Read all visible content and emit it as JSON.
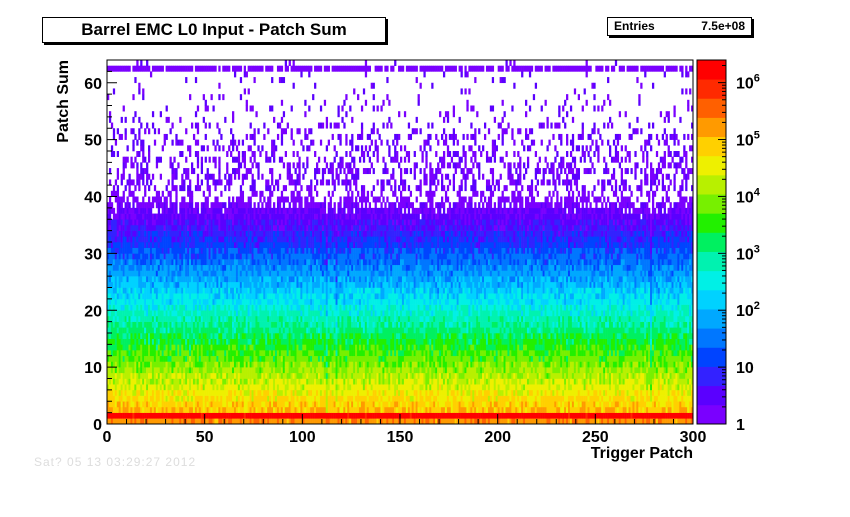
{
  "chart_data": {
    "type": "heatmap",
    "title": "Barrel EMC L0 Input - Patch Sum",
    "xlabel": "Trigger Patch",
    "ylabel": "Patch Sum",
    "xlim": [
      0,
      300
    ],
    "ylim": [
      0,
      64
    ],
    "x_ticks": [
      0,
      50,
      100,
      150,
      200,
      250,
      300
    ],
    "y_ticks": [
      0,
      10,
      20,
      30,
      40,
      50,
      60
    ],
    "z_scale": "log",
    "zlim": [
      1,
      2500000
    ],
    "z_tick_labels": [
      {
        "value": 1,
        "label": "1"
      },
      {
        "value": 10,
        "label": "10"
      },
      {
        "value": 100,
        "label": "10",
        "exponent": "2"
      },
      {
        "value": 1000,
        "label": "10",
        "exponent": "3"
      },
      {
        "value": 10000,
        "label": "10",
        "exponent": "4"
      },
      {
        "value": 100000,
        "label": "10",
        "exponent": "5"
      },
      {
        "value": 1000000,
        "label": "10",
        "exponent": "6"
      }
    ],
    "stats": {
      "label": "Entries",
      "value": "7.5e+08"
    },
    "palette": [
      "#7a00ff",
      "#5a00ff",
      "#3322ff",
      "#0044ff",
      "#0077ff",
      "#00a8ff",
      "#00d2ff",
      "#00f0e6",
      "#00f2b0",
      "#00f060",
      "#22f000",
      "#77f000",
      "#b8f000",
      "#eef000",
      "#ffd000",
      "#ff9a00",
      "#ff6000",
      "#ff2a00",
      "#ff0000"
    ]
  },
  "footer_text": "Sat? 05 13 03:29:27 2012"
}
